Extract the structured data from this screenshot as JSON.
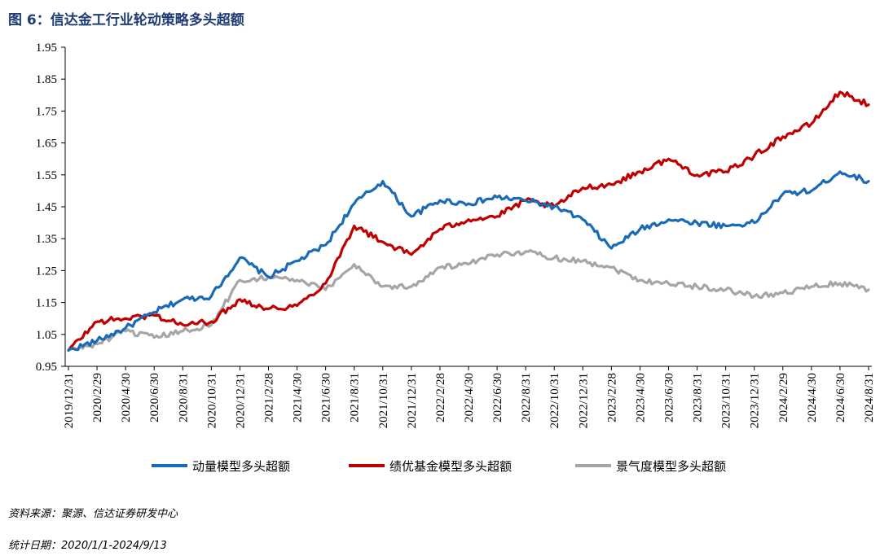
{
  "figure": {
    "title": "图 6：信达金工行业轮动策略多头超额",
    "source": "资料来源：聚源、信达证券研发中心",
    "period": "统计日期：2020/1/1-2024/9/13"
  },
  "chart_data": {
    "type": "line",
    "title": "图 6：信达金工行业轮动策略多头超额",
    "xlabel": "",
    "ylabel": "",
    "ylim": [
      0.95,
      1.95
    ],
    "yticks": [
      0.95,
      1.05,
      1.15,
      1.25,
      1.35,
      1.45,
      1.55,
      1.65,
      1.75,
      1.85,
      1.95
    ],
    "grid": false,
    "legend_position": "bottom",
    "categories": [
      "2019/12/31",
      "2020/2/29",
      "2020/4/30",
      "2020/6/30",
      "2020/8/31",
      "2020/10/31",
      "2020/12/31",
      "2021/2/28",
      "2021/4/30",
      "2021/6/30",
      "2021/8/31",
      "2021/10/31",
      "2021/12/31",
      "2022/2/28",
      "2022/4/30",
      "2022/6/30",
      "2022/8/31",
      "2022/10/31",
      "2022/12/31",
      "2023/2/28",
      "2023/4/30",
      "2023/6/30",
      "2023/8/31",
      "2023/10/31",
      "2023/12/31",
      "2024/2/29",
      "2024/4/30",
      "2024/6/30",
      "2024/8/31"
    ],
    "series": [
      {
        "name": "动量模型多头超额",
        "color": "#1a6bb5",
        "values": [
          1.0,
          1.03,
          1.07,
          1.12,
          1.16,
          1.17,
          1.29,
          1.23,
          1.28,
          1.33,
          1.46,
          1.53,
          1.42,
          1.47,
          1.46,
          1.48,
          1.47,
          1.45,
          1.41,
          1.32,
          1.38,
          1.41,
          1.4,
          1.39,
          1.4,
          1.49,
          1.5,
          1.56,
          1.53
        ]
      },
      {
        "name": "绩优基金模型多头超额",
        "color": "#c00000",
        "values": [
          1.0,
          1.09,
          1.1,
          1.11,
          1.08,
          1.09,
          1.16,
          1.13,
          1.14,
          1.21,
          1.39,
          1.34,
          1.3,
          1.38,
          1.41,
          1.42,
          1.47,
          1.45,
          1.51,
          1.52,
          1.56,
          1.6,
          1.55,
          1.56,
          1.61,
          1.67,
          1.71,
          1.81,
          1.77
        ]
      },
      {
        "name": "景气度模型多头超额",
        "color": "#a6a6a6",
        "values": [
          1.0,
          1.02,
          1.06,
          1.04,
          1.06,
          1.08,
          1.22,
          1.23,
          1.22,
          1.19,
          1.27,
          1.2,
          1.2,
          1.26,
          1.27,
          1.3,
          1.31,
          1.29,
          1.28,
          1.26,
          1.22,
          1.21,
          1.2,
          1.19,
          1.17,
          1.18,
          1.2,
          1.21,
          1.19
        ]
      }
    ]
  }
}
